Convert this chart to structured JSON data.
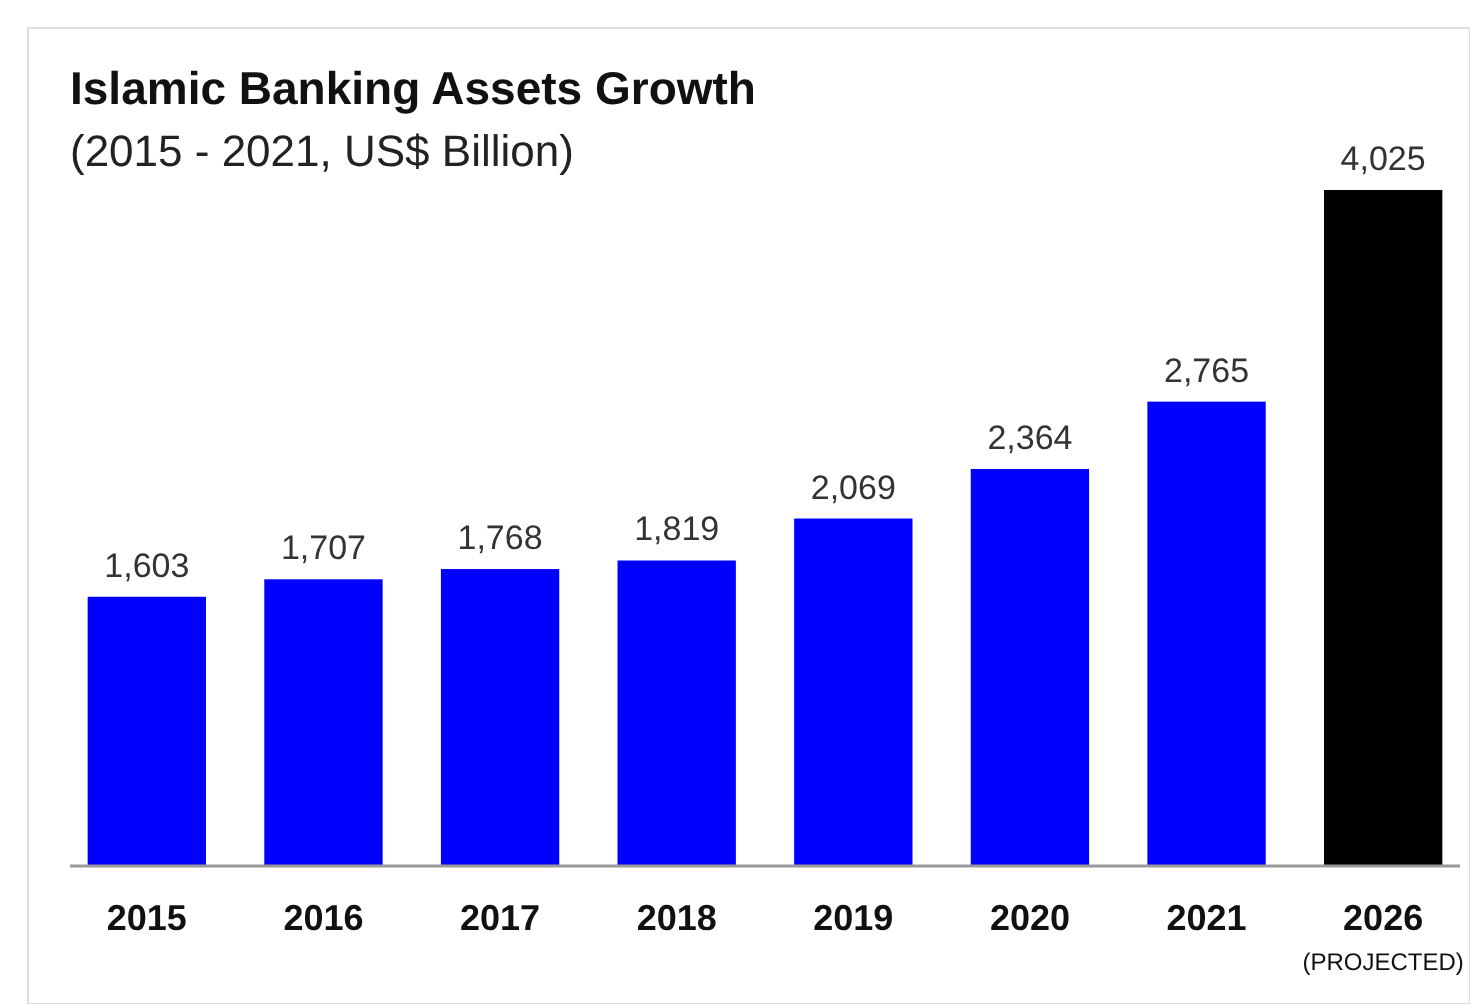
{
  "chart_data": {
    "type": "bar",
    "title": "Islamic Banking Assets Growth",
    "subtitle": "(2015 - 2021, US$ Billion)",
    "categories": [
      "2015",
      "2016",
      "2017",
      "2018",
      "2019",
      "2020",
      "2021",
      "2026"
    ],
    "values": [
      1603,
      1707,
      1768,
      1819,
      2069,
      2364,
      2765,
      4025
    ],
    "value_labels": [
      "1,603",
      "1,707",
      "1,768",
      "1,819",
      "2,069",
      "2,364",
      "2,765",
      "4,025"
    ],
    "colors": [
      "#0000ff",
      "#0000ff",
      "#0000ff",
      "#0000ff",
      "#0000ff",
      "#0000ff",
      "#0000ff",
      "#000000"
    ],
    "annotations": [
      "(PROJECTED)"
    ]
  }
}
